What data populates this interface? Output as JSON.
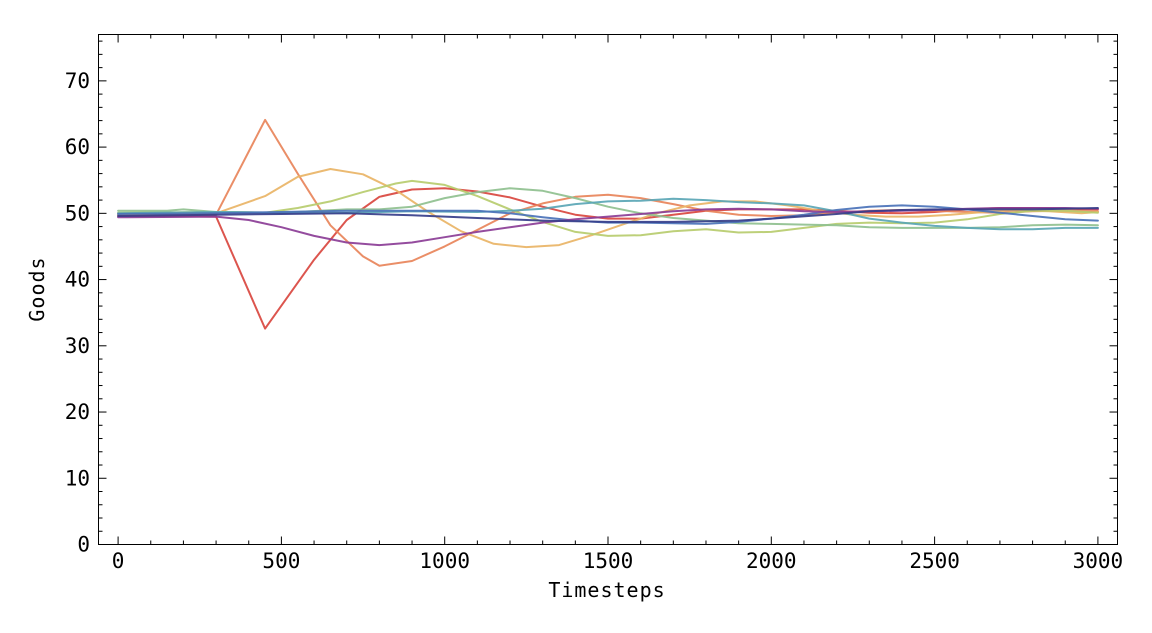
{
  "chart_data": {
    "type": "line",
    "title": "",
    "xlabel": "Timesteps",
    "ylabel": "Goods",
    "xlim": [
      -60,
      3060
    ],
    "ylim": [
      0,
      77
    ],
    "x_ticks": [
      0,
      500,
      1000,
      1500,
      2000,
      2500,
      3000
    ],
    "y_ticks": [
      0,
      10,
      20,
      30,
      40,
      50,
      60,
      70
    ],
    "grid": false,
    "legend": "none",
    "series": [
      {
        "color": "#d9463f",
        "points": [
          [
            0,
            49.6
          ],
          [
            300,
            49.5
          ],
          [
            450,
            32.6
          ],
          [
            600,
            43
          ],
          [
            700,
            49
          ],
          [
            800,
            52.5
          ],
          [
            900,
            53.6
          ],
          [
            1000,
            53.8
          ],
          [
            1100,
            53.3
          ],
          [
            1200,
            52.4
          ],
          [
            1300,
            51
          ],
          [
            1400,
            49.8
          ],
          [
            1500,
            49.2
          ],
          [
            1600,
            49.2
          ],
          [
            1700,
            49.8
          ],
          [
            1800,
            50.4
          ],
          [
            1900,
            50.6
          ],
          [
            2000,
            50.6
          ],
          [
            2100,
            50.6
          ],
          [
            2200,
            50.4
          ],
          [
            2300,
            50.1
          ],
          [
            2400,
            50
          ],
          [
            2500,
            50.2
          ],
          [
            2600,
            50.6
          ],
          [
            2700,
            50.8
          ],
          [
            2800,
            50.8
          ],
          [
            2900,
            50.7
          ],
          [
            3000,
            50.6
          ]
        ]
      },
      {
        "color": "#e8845a",
        "points": [
          [
            0,
            49.8
          ],
          [
            300,
            49.8
          ],
          [
            450,
            64.1
          ],
          [
            550,
            56
          ],
          [
            650,
            48.2
          ],
          [
            750,
            43.5
          ],
          [
            800,
            42.1
          ],
          [
            900,
            42.8
          ],
          [
            1000,
            45
          ],
          [
            1100,
            47.5
          ],
          [
            1200,
            50
          ],
          [
            1300,
            51.5
          ],
          [
            1400,
            52.5
          ],
          [
            1500,
            52.8
          ],
          [
            1600,
            52.3
          ],
          [
            1700,
            51.4
          ],
          [
            1800,
            50.4
          ],
          [
            1900,
            49.8
          ],
          [
            2000,
            49.6
          ],
          [
            2100,
            49.7
          ],
          [
            2200,
            50.1
          ],
          [
            2300,
            50.4
          ],
          [
            2400,
            50.5
          ],
          [
            2500,
            50.4
          ],
          [
            2600,
            50.2
          ],
          [
            2700,
            50.1
          ],
          [
            2800,
            50.3
          ],
          [
            2900,
            50.4
          ],
          [
            3000,
            50.3
          ]
        ]
      },
      {
        "color": "#e9b466",
        "points": [
          [
            0,
            49.9
          ],
          [
            300,
            50
          ],
          [
            450,
            52.6
          ],
          [
            550,
            55.5
          ],
          [
            650,
            56.7
          ],
          [
            750,
            55.9
          ],
          [
            850,
            53.5
          ],
          [
            950,
            50.2
          ],
          [
            1050,
            47.3
          ],
          [
            1150,
            45.4
          ],
          [
            1250,
            44.9
          ],
          [
            1350,
            45.2
          ],
          [
            1450,
            46.7
          ],
          [
            1550,
            48.4
          ],
          [
            1650,
            50
          ],
          [
            1750,
            51.2
          ],
          [
            1850,
            51.8
          ],
          [
            1950,
            51.8
          ],
          [
            2050,
            51.2
          ],
          [
            2150,
            50.4
          ],
          [
            2250,
            49.8
          ],
          [
            2350,
            49.5
          ],
          [
            2450,
            49.5
          ],
          [
            2550,
            49.8
          ],
          [
            2650,
            50.2
          ],
          [
            2750,
            50.5
          ],
          [
            2850,
            50.3
          ],
          [
            2950,
            50
          ],
          [
            3000,
            50.2
          ]
        ]
      },
      {
        "color": "#b7cc6e",
        "points": [
          [
            0,
            50.1
          ],
          [
            300,
            50.2
          ],
          [
            450,
            50.1
          ],
          [
            550,
            50.8
          ],
          [
            650,
            51.8
          ],
          [
            750,
            53.2
          ],
          [
            850,
            54.5
          ],
          [
            900,
            54.9
          ],
          [
            1000,
            54.3
          ],
          [
            1100,
            52.6
          ],
          [
            1200,
            50.6
          ],
          [
            1300,
            48.7
          ],
          [
            1400,
            47.2
          ],
          [
            1500,
            46.6
          ],
          [
            1600,
            46.7
          ],
          [
            1700,
            47.3
          ],
          [
            1800,
            47.6
          ],
          [
            1900,
            47.1
          ],
          [
            2000,
            47.2
          ],
          [
            2100,
            47.8
          ],
          [
            2200,
            48.4
          ],
          [
            2300,
            48.6
          ],
          [
            2400,
            48.5
          ],
          [
            2500,
            48.6
          ],
          [
            2600,
            49.1
          ],
          [
            2700,
            49.9
          ],
          [
            2800,
            50.4
          ],
          [
            2900,
            50.4
          ],
          [
            3000,
            50.1
          ]
        ]
      },
      {
        "color": "#8fc08f",
        "points": [
          [
            0,
            50.4
          ],
          [
            150,
            50.4
          ],
          [
            200,
            50.6
          ],
          [
            300,
            50.2
          ],
          [
            500,
            50.1
          ],
          [
            700,
            50.6
          ],
          [
            800,
            50.6
          ],
          [
            900,
            51
          ],
          [
            1000,
            52.3
          ],
          [
            1100,
            53.2
          ],
          [
            1200,
            53.8
          ],
          [
            1300,
            53.4
          ],
          [
            1400,
            52.3
          ],
          [
            1500,
            51
          ],
          [
            1600,
            50
          ],
          [
            1700,
            49.3
          ],
          [
            1800,
            48.9
          ],
          [
            1900,
            48.5
          ],
          [
            2000,
            48.4
          ],
          [
            2100,
            48.3
          ],
          [
            2200,
            48.2
          ],
          [
            2300,
            47.9
          ],
          [
            2400,
            47.8
          ],
          [
            2500,
            47.8
          ],
          [
            2600,
            47.8
          ],
          [
            2700,
            47.9
          ],
          [
            2800,
            48.2
          ],
          [
            2900,
            48.3
          ],
          [
            3000,
            48.2
          ]
        ]
      },
      {
        "color": "#5aa6b5",
        "points": [
          [
            0,
            50
          ],
          [
            300,
            50.2
          ],
          [
            500,
            50.1
          ],
          [
            700,
            50.1
          ],
          [
            900,
            50.3
          ],
          [
            1100,
            50.2
          ],
          [
            1200,
            50.4
          ],
          [
            1300,
            50.7
          ],
          [
            1400,
            51.4
          ],
          [
            1500,
            51.8
          ],
          [
            1600,
            51.9
          ],
          [
            1700,
            52.2
          ],
          [
            1800,
            52
          ],
          [
            1900,
            51.7
          ],
          [
            2000,
            51.5
          ],
          [
            2100,
            51.2
          ],
          [
            2200,
            50.3
          ],
          [
            2300,
            49.2
          ],
          [
            2400,
            48.6
          ],
          [
            2500,
            48.1
          ],
          [
            2600,
            47.8
          ],
          [
            2700,
            47.6
          ],
          [
            2800,
            47.6
          ],
          [
            2900,
            47.8
          ],
          [
            3000,
            47.8
          ]
        ]
      },
      {
        "color": "#4a72b8",
        "points": [
          [
            0,
            49.9
          ],
          [
            300,
            50
          ],
          [
            500,
            50.2
          ],
          [
            700,
            50.4
          ],
          [
            900,
            50.4
          ],
          [
            1100,
            50.4
          ],
          [
            1200,
            50
          ],
          [
            1300,
            49.4
          ],
          [
            1400,
            48.9
          ],
          [
            1500,
            48.6
          ],
          [
            1600,
            48.6
          ],
          [
            1700,
            48.5
          ],
          [
            1800,
            48.4
          ],
          [
            1900,
            48.7
          ],
          [
            2000,
            49.2
          ],
          [
            2100,
            49.8
          ],
          [
            2200,
            50.5
          ],
          [
            2300,
            51
          ],
          [
            2400,
            51.2
          ],
          [
            2500,
            51
          ],
          [
            2600,
            50.6
          ],
          [
            2700,
            50.1
          ],
          [
            2800,
            49.6
          ],
          [
            2900,
            49.1
          ],
          [
            3000,
            48.9
          ]
        ]
      },
      {
        "color": "#8b3d96",
        "points": [
          [
            0,
            49.4
          ],
          [
            300,
            49.5
          ],
          [
            400,
            49
          ],
          [
            500,
            47.9
          ],
          [
            600,
            46.6
          ],
          [
            700,
            45.6
          ],
          [
            800,
            45.2
          ],
          [
            900,
            45.6
          ],
          [
            1000,
            46.4
          ],
          [
            1100,
            47.2
          ],
          [
            1200,
            47.9
          ],
          [
            1300,
            48.6
          ],
          [
            1400,
            49.1
          ],
          [
            1500,
            49.5
          ],
          [
            1600,
            49.9
          ],
          [
            1700,
            50.3
          ],
          [
            1800,
            50.6
          ],
          [
            1900,
            50.7
          ],
          [
            2000,
            50.6
          ],
          [
            2100,
            50.3
          ],
          [
            2200,
            50.2
          ],
          [
            2300,
            50.3
          ],
          [
            2400,
            50.4
          ],
          [
            2500,
            50.5
          ],
          [
            2600,
            50.7
          ],
          [
            2700,
            50.8
          ],
          [
            2800,
            50.8
          ],
          [
            2900,
            50.8
          ],
          [
            3000,
            50.7
          ]
        ]
      },
      {
        "color": "#363e8a",
        "points": [
          [
            0,
            49.6
          ],
          [
            300,
            49.8
          ],
          [
            500,
            49.9
          ],
          [
            700,
            50
          ],
          [
            900,
            49.7
          ],
          [
            1100,
            49.3
          ],
          [
            1300,
            48.9
          ],
          [
            1500,
            48.7
          ],
          [
            1700,
            48.7
          ],
          [
            1900,
            48.9
          ],
          [
            2000,
            49.2
          ],
          [
            2200,
            49.9
          ],
          [
            2300,
            50.3
          ],
          [
            2400,
            50.5
          ],
          [
            2500,
            50.6
          ],
          [
            2600,
            50.6
          ],
          [
            2700,
            50.6
          ],
          [
            2800,
            50.6
          ],
          [
            2900,
            50.7
          ],
          [
            3000,
            50.8
          ]
        ]
      }
    ]
  }
}
